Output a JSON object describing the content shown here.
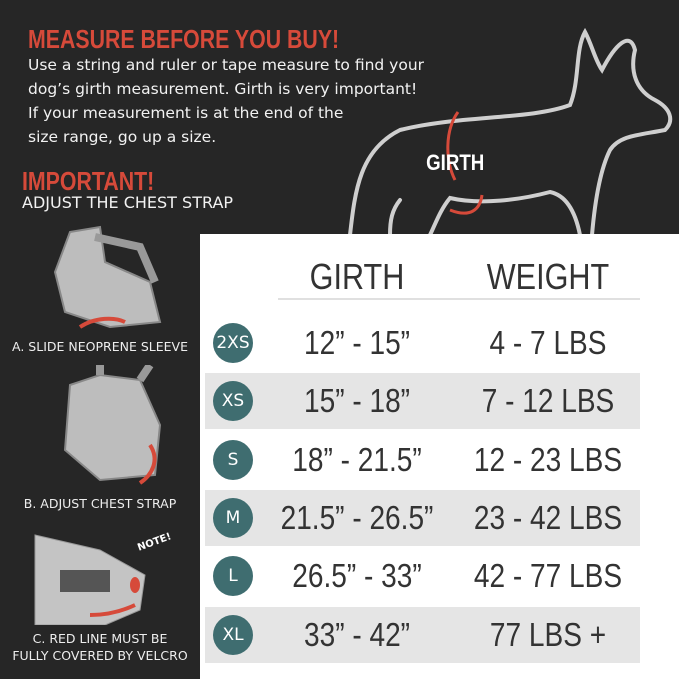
{
  "header": {
    "title": "MEASURE BEFORE YOU BUY!",
    "body": [
      "Use a string and ruler or tape measure to find your",
      "dog’s girth measurement. Girth is very important!",
      "If your measurement is at the end of the",
      "size range, go up a size."
    ]
  },
  "important": {
    "title": "IMPORTANT!",
    "subtitle": "ADJUST THE CHEST STRAP"
  },
  "steps": [
    {
      "caption": "A. SLIDE NEOPRENE SLEEVE"
    },
    {
      "caption": "B. ADJUST CHEST STRAP"
    },
    {
      "caption": [
        "C. RED LINE MUST BE",
        "FULLY COVERED BY VELCRO"
      ],
      "note": "NOTE!"
    }
  ],
  "dog": {
    "label": "GIRTH"
  },
  "table": {
    "headers": [
      "GIRTH",
      "WEIGHT"
    ],
    "rows": [
      {
        "size": "2XS",
        "girth": "12” - 15”",
        "weight": "4 - 7 LBS"
      },
      {
        "size": "XS",
        "girth": "15” - 18”",
        "weight": "7 - 12 LBS"
      },
      {
        "size": "S",
        "girth": "18” - 21.5”",
        "weight": "12 - 23 LBS"
      },
      {
        "size": "M",
        "girth": "21.5” - 26.5”",
        "weight": "23 - 42 LBS"
      },
      {
        "size": "L",
        "girth": "26.5” - 33”",
        "weight": "42 - 77 LBS"
      },
      {
        "size": "XL",
        "girth": "33” - 42”",
        "weight": "77 LBS +"
      }
    ]
  },
  "colors": {
    "accent": "#d64a3a",
    "size_badge": "#3f6d70",
    "background": "#262626"
  }
}
